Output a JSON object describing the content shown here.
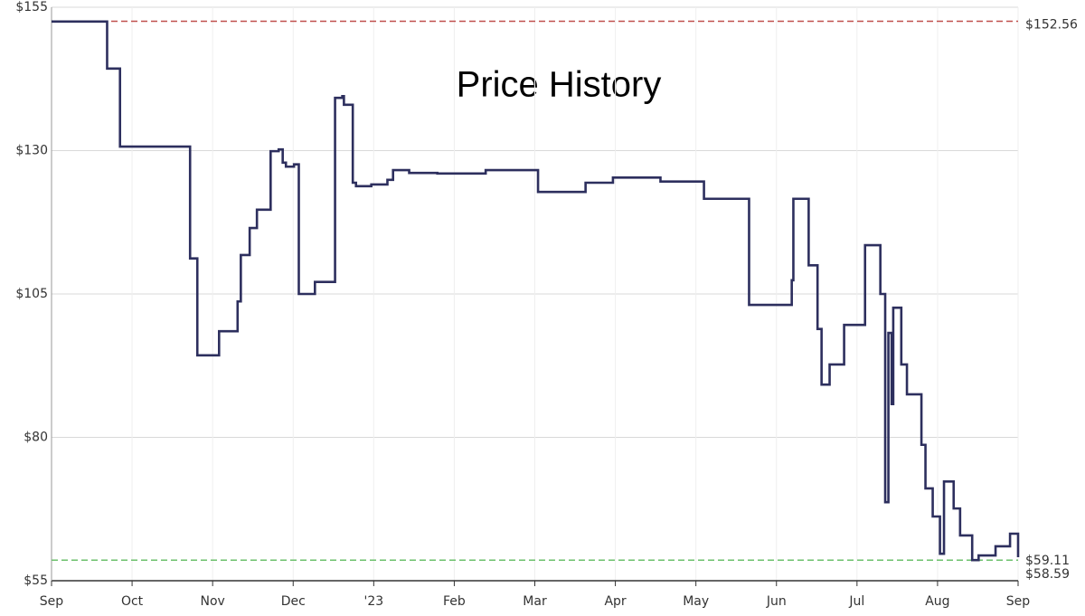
{
  "chart_data": {
    "type": "step-line",
    "title": "Price History",
    "x": [
      0,
      0.69,
      0.85,
      1.72,
      1.81,
      2.08,
      2.31,
      2.35,
      2.46,
      2.55,
      2.72,
      2.82,
      2.87,
      2.91,
      3.01,
      3.07,
      3.27,
      3.52,
      3.61,
      3.63,
      3.74,
      3.78,
      3.97,
      4.17,
      4.24,
      4.44,
      4.79,
      5.39,
      6.04,
      6.63,
      6.97,
      7.56,
      8.1,
      8.66,
      9.19,
      9.21,
      9.4,
      9.51,
      9.56,
      9.66,
      9.84,
      10.1,
      10.29,
      10.35,
      10.39,
      10.43,
      10.45,
      10.55,
      10.62,
      10.8,
      10.85,
      10.94,
      11.03,
      11.08,
      11.2,
      11.28,
      11.43,
      11.51,
      11.72,
      11.9,
      12
    ],
    "values": [
      152.5,
      144.3,
      130.7,
      111.2,
      94.3,
      98.5,
      103.7,
      111.8,
      116.5,
      119.7,
      129.9,
      130.2,
      127.9,
      127.2,
      127.6,
      105.0,
      107.1,
      139.2,
      139.5,
      138.0,
      124.4,
      123.8,
      124.1,
      124.9,
      126.6,
      126.1,
      126.0,
      126.6,
      122.8,
      124.4,
      125.3,
      124.6,
      121.6,
      103.1,
      107.4,
      121.6,
      110.0,
      98.9,
      89.2,
      92.7,
      99.6,
      113.5,
      105.0,
      68.7,
      98.2,
      85.8,
      102.6,
      92.7,
      87.5,
      78.7,
      71.1,
      66.2,
      59.7,
      72.3,
      67.6,
      62.9,
      58.6,
      59.4,
      61.0,
      63.2,
      59.11
    ],
    "color": "#2d2f5e",
    "xlim": [
      0,
      12
    ],
    "xticks": [
      {
        "value": 0,
        "label": "Sep"
      },
      {
        "value": 1,
        "label": "Oct"
      },
      {
        "value": 2,
        "label": "Nov"
      },
      {
        "value": 3,
        "label": "Dec"
      },
      {
        "value": 4,
        "label": "'23"
      },
      {
        "value": 5,
        "label": "Feb"
      },
      {
        "value": 6,
        "label": "Mar"
      },
      {
        "value": 7,
        "label": "Apr"
      },
      {
        "value": 8,
        "label": "May"
      },
      {
        "value": 9,
        "label": "Jun"
      },
      {
        "value": 10,
        "label": "Jul"
      },
      {
        "value": 11,
        "label": "Aug"
      },
      {
        "value": 12,
        "label": "Sep"
      }
    ],
    "ylim": [
      55,
      155
    ],
    "yticks": [
      {
        "value": 55,
        "label": "$55"
      },
      {
        "value": 80,
        "label": "$80"
      },
      {
        "value": 105,
        "label": "$105"
      },
      {
        "value": 130,
        "label": "$130"
      },
      {
        "value": 155,
        "label": "$155"
      }
    ],
    "grid": true,
    "reference_lines": [
      {
        "value": 152.56,
        "label": "$152.56",
        "color": "#c0504d"
      },
      {
        "value": 58.59,
        "label": "$58.59",
        "color": "#6cc06c"
      }
    ],
    "current": {
      "value": 59.11,
      "label": "$59.11"
    }
  }
}
